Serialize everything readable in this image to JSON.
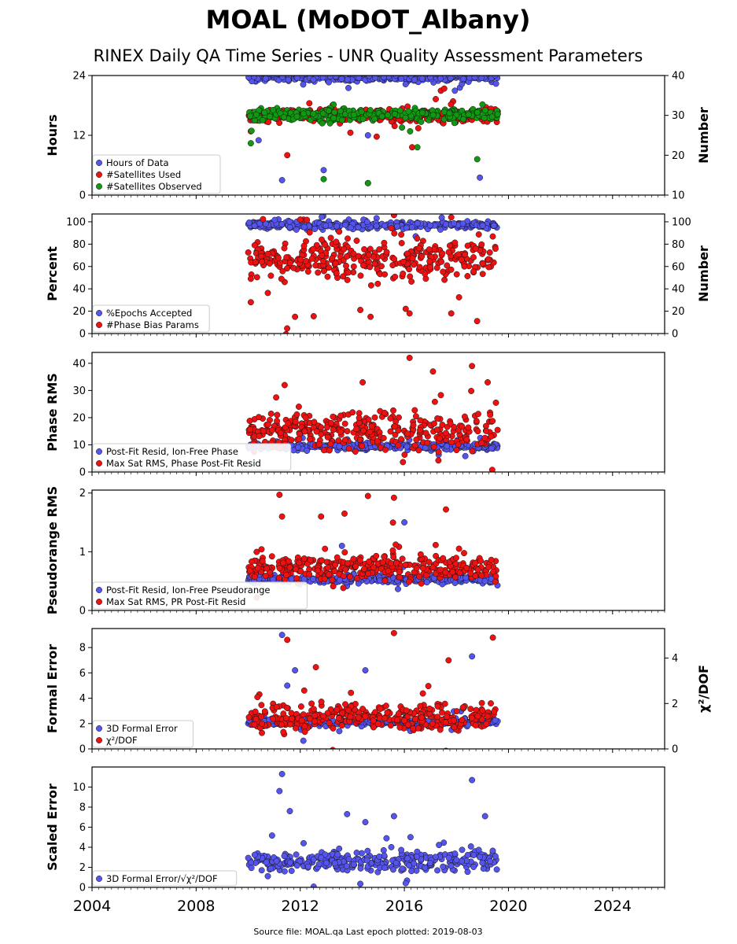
{
  "chart_data": {
    "type": "scatter",
    "title": "MOAL (MoDOT_Albany)",
    "subtitle": "RINEX Daily QA Time Series - UNR Quality Assessment Parameters",
    "footer": "Source file: MOAL.qa Last epoch plotted: 2019-08-03",
    "x_range": [
      2004,
      2026
    ],
    "x_ticks": [
      "2004",
      "2008",
      "2012",
      "2016",
      "2020",
      "2024"
    ],
    "data_span": [
      2010.0,
      2019.59
    ],
    "colors": {
      "blue": "#5555ee",
      "red": "#ee1111",
      "green": "#119911"
    },
    "panels": [
      {
        "ylabel": "Hours",
        "ylim": [
          0,
          24
        ],
        "yticks": [
          "0",
          "12",
          "24"
        ],
        "ylabel_right": "Number",
        "ylim_right": [
          10,
          40
        ],
        "yticks_right": [
          "10",
          "20",
          "30",
          "40"
        ],
        "legend": [
          "Hours of Data",
          "#Satellites Used",
          "#Satellites Observed"
        ],
        "series": [
          {
            "name": "Hours of Data",
            "color": "blue",
            "axis": "left",
            "center": 23.6,
            "spread": 0.4,
            "outliers": [
              [
                2011.3,
                3
              ],
              [
                2012.9,
                5
              ],
              [
                2010.4,
                11
              ],
              [
                2014.6,
                12
              ],
              [
                2018.9,
                3.5
              ]
            ]
          },
          {
            "name": "#Satellites Used",
            "color": "red",
            "axis": "right",
            "center": 30,
            "spread": 0.8,
            "outliers": [
              [
                2010.1,
                26
              ],
              [
                2011.5,
                20
              ],
              [
                2014.6,
                13
              ],
              [
                2016.3,
                22
              ],
              [
                2017.5,
                28
              ]
            ]
          },
          {
            "name": "#Satellites Observed",
            "color": "green",
            "axis": "right",
            "center": 30.2,
            "spread": 0.7,
            "outliers": [
              [
                2010.1,
                23
              ],
              [
                2012.9,
                14
              ],
              [
                2014.6,
                13
              ],
              [
                2016.5,
                22
              ],
              [
                2018.8,
                19
              ]
            ]
          }
        ]
      },
      {
        "ylabel": "Percent",
        "ylim": [
          0,
          107
        ],
        "yticks": [
          "0",
          "20",
          "40",
          "60",
          "80",
          "100"
        ],
        "ylabel_right": "Number",
        "ylim_right": [
          0,
          107
        ],
        "yticks_right": [
          "0",
          "20",
          "40",
          "60",
          "80",
          "100"
        ],
        "legend": [
          "%Epochs Accepted",
          "#Phase Bias Params"
        ],
        "series": [
          {
            "name": "%Epochs Accepted",
            "color": "blue",
            "axis": "left",
            "center": 97,
            "spread": 1.5,
            "outliers": [
              [
                2011.6,
                95
              ],
              [
                2013.4,
                96
              ]
            ]
          },
          {
            "name": "#Phase Bias Params",
            "color": "red",
            "axis": "right",
            "center": 66,
            "spread": 9,
            "outliers": [
              [
                2010.1,
                28
              ],
              [
                2011.8,
                15
              ],
              [
                2014.7,
                15
              ],
              [
                2016.2,
                18
              ],
              [
                2017.8,
                18
              ],
              [
                2012.0,
                102
              ],
              [
                2015.6,
                106
              ],
              [
                2017.8,
                104
              ]
            ]
          }
        ]
      },
      {
        "ylabel": "Phase RMS",
        "ylim": [
          0,
          44
        ],
        "yticks": [
          "0",
          "10",
          "20",
          "30",
          "40"
        ],
        "legend": [
          "Post-Fit Resid, Ion-Free Phase",
          "Max Sat RMS, Phase Post-Fit Resid"
        ],
        "series": [
          {
            "name": "Post-Fit Resid, Ion-Free Phase",
            "color": "blue",
            "axis": "left",
            "center": 9.5,
            "spread": 0.6,
            "outliers": []
          },
          {
            "name": "Max Sat RMS, Phase Post-Fit Resid",
            "color": "red",
            "axis": "left",
            "center": 15,
            "spread": 3.5,
            "outliers": [
              [
                2016.2,
                42
              ],
              [
                2018.6,
                39
              ],
              [
                2017.1,
                37
              ],
              [
                2014.4,
                33
              ],
              [
                2011.4,
                32
              ],
              [
                2019.2,
                33
              ]
            ]
          }
        ]
      },
      {
        "ylabel": "Pseudorange RMS",
        "ylim": [
          0,
          2.05
        ],
        "yticks": [
          "0",
          "1",
          "2"
        ],
        "legend": [
          "Post-Fit Resid, Ion-Free Pseudorange",
          "Max Sat RMS, PR Post-Fit Resid"
        ],
        "series": [
          {
            "name": "Post-Fit Resid, Ion-Free Pseudorange",
            "color": "blue",
            "axis": "left",
            "center": 0.53,
            "spread": 0.03,
            "outliers": [
              [
                2016.0,
                1.5
              ],
              [
                2013.6,
                1.1
              ]
            ]
          },
          {
            "name": "Max Sat RMS, PR Post-Fit Resid",
            "color": "red",
            "axis": "left",
            "center": 0.72,
            "spread": 0.1,
            "outliers": [
              [
                2011.2,
                1.97
              ],
              [
                2014.6,
                1.95
              ],
              [
                2015.6,
                1.92
              ],
              [
                2017.6,
                1.72
              ],
              [
                2011.3,
                1.6
              ],
              [
                2012.8,
                1.6
              ],
              [
                2013.7,
                1.65
              ]
            ]
          }
        ]
      },
      {
        "ylabel": "Formal Error",
        "ylim": [
          0,
          9.5
        ],
        "yticks": [
          "0",
          "2",
          "4",
          "6",
          "8"
        ],
        "ylabel_right": "χ²/DOF",
        "ylim_right": [
          0,
          5.3
        ],
        "yticks_right": [
          "0",
          "2",
          "4"
        ],
        "legend": [
          "3D Formal Error",
          "χ²/DOF"
        ],
        "series": [
          {
            "name": "3D Formal Error",
            "color": "blue",
            "axis": "left",
            "center": 2.1,
            "spread": 0.15,
            "outliers": [
              [
                2011.3,
                9.0
              ],
              [
                2018.6,
                7.3
              ],
              [
                2011.5,
                5.0
              ],
              [
                2014.5,
                6.2
              ],
              [
                2011.8,
                6.2
              ]
            ]
          },
          {
            "name": "χ²/DOF",
            "color": "red",
            "axis": "right",
            "center": 1.4,
            "spread": 0.3,
            "outliers": [
              [
                2011.5,
                4.8
              ],
              [
                2015.6,
                5.1
              ],
              [
                2019.4,
                4.9
              ],
              [
                2017.7,
                3.9
              ],
              [
                2012.6,
                3.6
              ]
            ]
          }
        ]
      },
      {
        "ylabel": "Scaled Error",
        "ylim": [
          0,
          12
        ],
        "yticks": [
          "0",
          "2",
          "4",
          "6",
          "8",
          "10"
        ],
        "legend": [
          "3D Formal Error/√χ²/DOF"
        ],
        "series": [
          {
            "name": "3D Formal Error/√χ²/DOF",
            "color": "blue",
            "axis": "left",
            "center": 2.6,
            "spread": 0.45,
            "outliers": [
              [
                2011.3,
                11.3
              ],
              [
                2011.2,
                9.6
              ],
              [
                2018.6,
                10.7
              ],
              [
                2011.6,
                7.6
              ],
              [
                2013.8,
                7.3
              ],
              [
                2015.6,
                7.1
              ],
              [
                2019.1,
                7.1
              ],
              [
                2014.5,
                6.5
              ]
            ]
          }
        ]
      }
    ]
  }
}
